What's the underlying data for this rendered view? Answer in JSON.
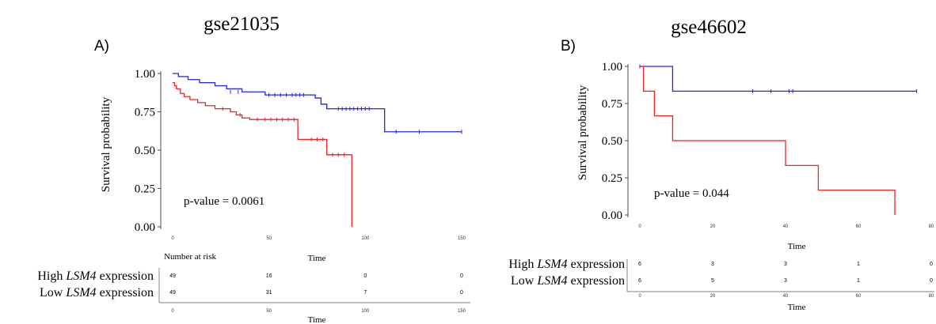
{
  "chart_data": [
    {
      "type": "line",
      "panel_label": "A)",
      "title": "gse21035",
      "xlabel": "Time",
      "ylabel": "Survival probability",
      "xlim": [
        0,
        150
      ],
      "ylim": [
        0,
        1
      ],
      "x_ticks": [
        "0",
        "50",
        "100",
        "150"
      ],
      "y_ticks": [
        "0.00",
        "0.25",
        "0.50",
        "0.75",
        "1.00"
      ],
      "annotation": "p-value = 0.0061",
      "series": [
        {
          "color": "#2222ee",
          "steps": [
            [
              0,
              1.0
            ],
            [
              3,
              0.98
            ],
            [
              8,
              0.96
            ],
            [
              14,
              0.94
            ],
            [
              22,
              0.92
            ],
            [
              28,
              0.9
            ],
            [
              36,
              0.88
            ],
            [
              48,
              0.86
            ],
            [
              74,
              0.84
            ],
            [
              77,
              0.8
            ],
            [
              80,
              0.77
            ],
            [
              110,
              0.62
            ],
            [
              150,
              0.62
            ]
          ],
          "censored": [
            [
              30,
              0.88
            ],
            [
              34,
              0.88
            ],
            [
              50,
              0.86
            ],
            [
              53,
              0.86
            ],
            [
              56,
              0.86
            ],
            [
              59,
              0.86
            ],
            [
              62,
              0.86
            ],
            [
              64,
              0.86
            ],
            [
              66,
              0.86
            ],
            [
              68,
              0.86
            ],
            [
              86,
              0.77
            ],
            [
              88,
              0.77
            ],
            [
              90,
              0.77
            ],
            [
              92,
              0.77
            ],
            [
              94,
              0.77
            ],
            [
              96,
              0.77
            ],
            [
              98,
              0.77
            ],
            [
              100,
              0.77
            ],
            [
              102,
              0.77
            ],
            [
              116,
              0.62
            ],
            [
              128,
              0.62
            ],
            [
              150,
              0.62
            ]
          ]
        },
        {
          "color": "#ee2222",
          "steps": [
            [
              0,
              0.94
            ],
            [
              1,
              0.92
            ],
            [
              2,
              0.9
            ],
            [
              4,
              0.87
            ],
            [
              6,
              0.85
            ],
            [
              9,
              0.83
            ],
            [
              13,
              0.81
            ],
            [
              17,
              0.79
            ],
            [
              22,
              0.77
            ],
            [
              30,
              0.75
            ],
            [
              33,
              0.73
            ],
            [
              36,
              0.71
            ],
            [
              40,
              0.7
            ],
            [
              65,
              0.57
            ],
            [
              80,
              0.47
            ],
            [
              93,
              0.47
            ],
            [
              93,
              0.0
            ]
          ],
          "censored": [
            [
              26,
              0.77
            ],
            [
              35,
              0.73
            ],
            [
              44,
              0.7
            ],
            [
              48,
              0.7
            ],
            [
              51,
              0.7
            ],
            [
              54,
              0.7
            ],
            [
              57,
              0.7
            ],
            [
              60,
              0.7
            ],
            [
              63,
              0.7
            ],
            [
              72,
              0.57
            ],
            [
              75,
              0.57
            ],
            [
              78,
              0.57
            ],
            [
              83,
              0.47
            ],
            [
              86,
              0.47
            ],
            [
              89,
              0.47
            ]
          ]
        }
      ],
      "risk_table": {
        "heading": "Number at risk",
        "xlabel": "Time",
        "x_ticks": [
          "0",
          "50",
          "100",
          "150"
        ],
        "rows": [
          {
            "label_pre": "High ",
            "label_gene": "LSM4",
            "label_post": " expression",
            "counts": [
              "49",
              "16",
              "0",
              "0"
            ]
          },
          {
            "label_pre": "Low ",
            "label_gene": "LSM4",
            "label_post": " expression",
            "counts": [
              "49",
              "31",
              "7",
              "0"
            ]
          }
        ]
      }
    },
    {
      "type": "line",
      "panel_label": "B)",
      "title": "gse46602",
      "xlabel": "Time",
      "ylabel": "Survival probability",
      "xlim": [
        0,
        80
      ],
      "ylim": [
        0,
        1
      ],
      "x_ticks": [
        "0",
        "20",
        "40",
        "60",
        "80"
      ],
      "y_ticks": [
        "0.00",
        "0.25",
        "0.50",
        "0.75",
        "1.00"
      ],
      "annotation": "p-value = 0.044",
      "series": [
        {
          "color": "#2222ee",
          "steps": [
            [
              0,
              1.0
            ],
            [
              9,
              1.0
            ],
            [
              9,
              0.833
            ],
            [
              76,
              0.833
            ]
          ],
          "censored": [
            [
              0,
              1.0
            ],
            [
              31,
              0.833
            ],
            [
              36,
              0.833
            ],
            [
              41,
              0.833
            ],
            [
              42,
              0.833
            ],
            [
              76,
              0.833
            ]
          ]
        },
        {
          "color": "#ee2222",
          "steps": [
            [
              0,
              1.0
            ],
            [
              1,
              0.833
            ],
            [
              4,
              0.667
            ],
            [
              9,
              0.5
            ],
            [
              40,
              0.333
            ],
            [
              49,
              0.167
            ],
            [
              70,
              0.167
            ],
            [
              70,
              0.0
            ]
          ],
          "censored": []
        }
      ],
      "risk_table": {
        "heading": "",
        "xlabel": "Time",
        "x_ticks": [
          "0",
          "20",
          "40",
          "60",
          "80"
        ],
        "rows": [
          {
            "label_pre": "High ",
            "label_gene": "LSM4",
            "label_post": " expression",
            "counts": [
              "6",
              "3",
              "3",
              "1",
              "0"
            ]
          },
          {
            "label_pre": "Low ",
            "label_gene": "LSM4",
            "label_post": " expression",
            "counts": [
              "6",
              "5",
              "3",
              "1",
              "0"
            ]
          }
        ]
      }
    }
  ]
}
